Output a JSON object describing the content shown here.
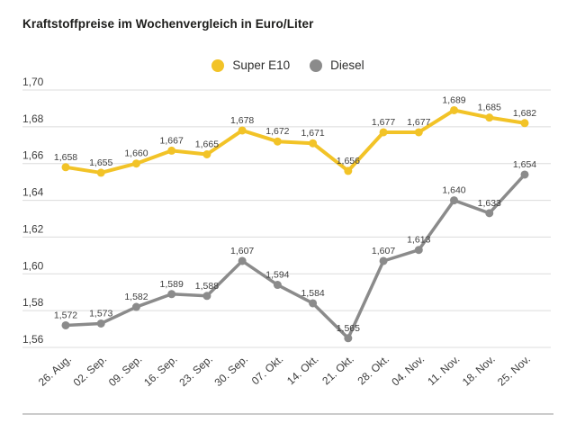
{
  "title": "Kraftstoffpreise im Wochenvergleich in Euro/Liter",
  "legend": {
    "items": [
      {
        "label": "Super E10",
        "color": "#F2C327"
      },
      {
        "label": "Diesel",
        "color": "#8B8B8B"
      }
    ]
  },
  "chart_data": {
    "type": "line",
    "title": "Kraftstoffpreise im Wochenvergleich in Euro/Liter",
    "xlabel": "",
    "ylabel": "Euro/Liter",
    "categories": [
      "26. Aug.",
      "02. Sep.",
      "09. Sep.",
      "16. Sep.",
      "23. Sep.",
      "30. Sep.",
      "07. Okt.",
      "14. Okt.",
      "21. Okt.",
      "28. Okt.",
      "04. Nov.",
      "11. Nov.",
      "18. Nov.",
      "25. Nov."
    ],
    "series": [
      {
        "name": "Super E10",
        "color": "#F2C327",
        "values": [
          1.658,
          1.655,
          1.66,
          1.667,
          1.665,
          1.678,
          1.672,
          1.671,
          1.656,
          1.677,
          1.677,
          1.689,
          1.685,
          1.682
        ],
        "labels": [
          "1,658",
          "1,655",
          "1,660",
          "1,667",
          "1,665",
          "1,678",
          "1,672",
          "1,671",
          "1,656",
          "1,677",
          "1,677",
          "1,689",
          "1,685",
          "1,682"
        ]
      },
      {
        "name": "Diesel",
        "color": "#8B8B8B",
        "values": [
          1.572,
          1.573,
          1.582,
          1.589,
          1.588,
          1.607,
          1.594,
          1.584,
          1.565,
          1.607,
          1.613,
          1.64,
          1.633,
          1.654
        ],
        "labels": [
          "1,572",
          "1,573",
          "1,582",
          "1,589",
          "1,588",
          "1,607",
          "1,594",
          "1,584",
          "1,565",
          "1,607",
          "1,613",
          "1,640",
          "1,633",
          "1,654"
        ]
      }
    ],
    "ylim": [
      1.56,
      1.7
    ],
    "yticks": [
      {
        "value": 1.7,
        "label": "1,70"
      },
      {
        "value": 1.68,
        "label": "1,68"
      },
      {
        "value": 1.66,
        "label": "1,66"
      },
      {
        "value": 1.64,
        "label": "1,64"
      },
      {
        "value": 1.62,
        "label": "1,62"
      },
      {
        "value": 1.6,
        "label": "1,60"
      },
      {
        "value": 1.58,
        "label": "1,58"
      },
      {
        "value": 1.56,
        "label": "1,56"
      }
    ],
    "grid": true,
    "legend_position": "top-center"
  },
  "colors": {
    "background": "#FFFFFF",
    "title_text": "#1D1D1B",
    "grid_line": "#DCDCDC",
    "tick_text": "#3D3D3D",
    "data_label_text": "#3E3E3E",
    "bottom_separator": "#CBCBCB"
  }
}
